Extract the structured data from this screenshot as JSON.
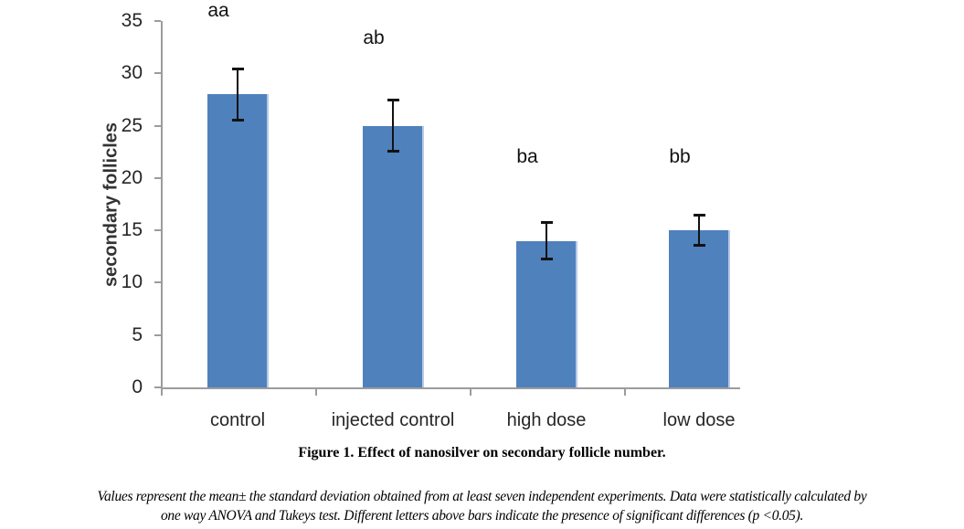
{
  "figure": {
    "caption": "Figure 1. Effect of nanosilver on secondary follicle number.",
    "footnote_line1": "Values represent the mean± the standard deviation obtained from at least seven independent experiments. Data were statistically calculated by",
    "footnote_line2": "one way ANOVA and Tukeys test. Different letters above bars indicate the presence of significant differences (p <0.05)."
  },
  "chart_data": {
    "type": "bar",
    "title": "",
    "xlabel": "",
    "ylabel": "secondary follicles",
    "ylim": [
      0,
      35
    ],
    "yticks": [
      0,
      5,
      10,
      15,
      20,
      25,
      30,
      35
    ],
    "grid": false,
    "legend_position": "none",
    "categories": [
      "control",
      "injected control",
      "high dose",
      "low dose"
    ],
    "values": [
      28,
      25,
      14,
      15
    ],
    "errors": [
      2.5,
      2.5,
      1.8,
      1.5
    ],
    "significance_letters": [
      "aa",
      "ab",
      "ba",
      "bb"
    ],
    "letter_y_values": [
      36,
      33.3,
      22,
      22
    ],
    "colors": {
      "bar": "#4F81BD",
      "bar_edge_highlight": "#b7cbe5",
      "axis": "#9c9c9c",
      "error_bar": "#121212",
      "tick_text": "#262626",
      "letter_text": "#111111"
    }
  }
}
